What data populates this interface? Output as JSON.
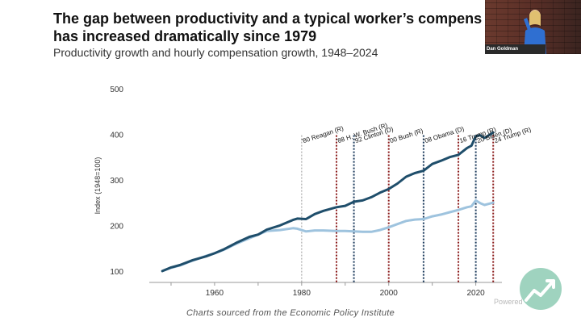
{
  "slide": {
    "title_line1": "The gap between productivity and a typical worker’s compens",
    "title_line2": "has increased dramatically since 1979",
    "subtitle": "Productivity growth and hourly compensation growth, 1948–2024",
    "caption": "Charts sourced from the Economic Policy Institute",
    "speaker_name": "Dan Goldman",
    "watermark": "Powered"
  },
  "colors": {
    "productivity": "#1f4e6b",
    "compensation": "#9ec3de",
    "dem_marker": "#1b3a5c",
    "rep_marker": "#8b1a1a",
    "reagan_marker": "#aaaaaa",
    "logo": "#9fd3bf"
  },
  "chart_data": {
    "type": "line",
    "title": "",
    "xlabel": "",
    "ylabel": "Index (1948=100)",
    "xlim": [
      1945,
      2026
    ],
    "ylim": [
      75,
      500
    ],
    "x_ticks": [
      "1960",
      "1980",
      "2000",
      "2020"
    ],
    "y_ticks": [
      "100",
      "200",
      "300",
      "400",
      "500"
    ],
    "grid": false,
    "series": [
      {
        "name": "",
        "x": [
          1948,
          1950,
          1952,
          1955,
          1958,
          1960,
          1962,
          1965,
          1968,
          1970,
          1972,
          1975,
          1978,
          1979,
          1981,
          1983,
          1985,
          1988,
          1990,
          1992,
          1994,
          1996,
          1998,
          2000,
          2002,
          2004,
          2006,
          2008,
          2010,
          2012,
          2014,
          2016,
          2018,
          2019,
          2020,
          2021,
          2022,
          2024
        ],
        "y": [
          100,
          108,
          113,
          124,
          132,
          139,
          147,
          162,
          175,
          180,
          191,
          200,
          212,
          215,
          214,
          225,
          232,
          240,
          243,
          252,
          255,
          262,
          272,
          280,
          292,
          307,
          315,
          320,
          335,
          342,
          350,
          355,
          370,
          375,
          396,
          398,
          392,
          404
        ]
      },
      {
        "name": "",
        "x": [
          1948,
          1950,
          1952,
          1955,
          1958,
          1960,
          1962,
          1965,
          1968,
          1970,
          1972,
          1975,
          1978,
          1979,
          1981,
          1983,
          1985,
          1988,
          1990,
          1992,
          1994,
          1996,
          1998,
          2000,
          2002,
          2004,
          2006,
          2008,
          2010,
          2012,
          2014,
          2016,
          2018,
          2019,
          2020,
          2021,
          2022,
          2024
        ],
        "y": [
          100,
          107,
          112,
          123,
          133,
          139,
          146,
          160,
          172,
          180,
          188,
          190,
          194,
          193,
          187,
          189,
          189,
          188,
          188,
          187,
          186,
          186,
          190,
          196,
          203,
          210,
          213,
          214,
          220,
          224,
          229,
          234,
          240,
          242,
          255,
          249,
          245,
          250
        ]
      }
    ],
    "markers": [
      {
        "year": 1980,
        "label": "'80 Reagan (R)",
        "party": "R-start"
      },
      {
        "year": 1988,
        "label": "'88 H. W. Bush (R)",
        "party": "R"
      },
      {
        "year": 1992,
        "label": "'92 Clinton (D)",
        "party": "D"
      },
      {
        "year": 2000,
        "label": "'00 Bush (R)",
        "party": "R"
      },
      {
        "year": 2008,
        "label": "'08 Obama (D)",
        "party": "D"
      },
      {
        "year": 2016,
        "label": "'16 Trump (R)",
        "party": "R"
      },
      {
        "year": 2020,
        "label": "'20 Biden (D)",
        "party": "D"
      },
      {
        "year": 2024,
        "label": "'24 Trump (R)",
        "party": "R"
      }
    ]
  }
}
